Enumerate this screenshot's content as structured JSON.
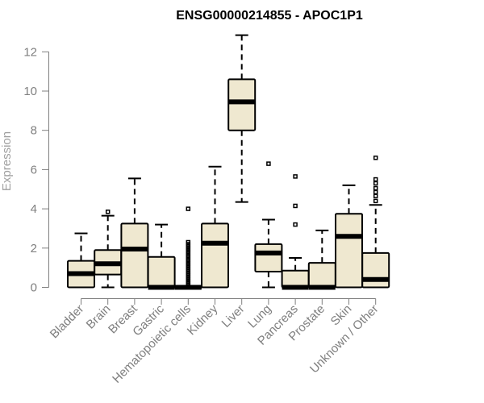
{
  "chart_data": {
    "type": "box",
    "title": "ENSG00000214855 - APOC1P1",
    "xlabel": "",
    "ylabel": "Expression",
    "ylim": [
      0,
      12.8
    ],
    "yticks": [
      0,
      2,
      4,
      6,
      8,
      10,
      12
    ],
    "grid": false,
    "box_fill": "#efe8d0",
    "box_stroke": "#000000",
    "label_color": "#7f7f7f",
    "categories": [
      "Bladder",
      "Brain",
      "Breast",
      "Gastric",
      "Hematopoietic cells",
      "Kidney",
      "Liver",
      "Lung",
      "Pancreas",
      "Prostate",
      "Skin",
      "Unknown / Other"
    ],
    "boxes": [
      {
        "category": "Bladder",
        "whisker_low": 0,
        "q1": 0,
        "median": 0.7,
        "q3": 1.35,
        "whisker_high": 2.75,
        "outliers": []
      },
      {
        "category": "Brain",
        "whisker_low": 0,
        "q1": 0.65,
        "median": 1.2,
        "q3": 1.9,
        "whisker_high": 3.65,
        "outliers": [
          3.85
        ]
      },
      {
        "category": "Breast",
        "whisker_low": 0,
        "q1": 0,
        "median": 1.95,
        "q3": 3.25,
        "whisker_high": 5.55,
        "outliers": []
      },
      {
        "category": "Gastric",
        "whisker_low": 0,
        "q1": 0,
        "median": 0,
        "q3": 1.55,
        "whisker_high": 3.2,
        "outliers": []
      },
      {
        "category": "Hematopoietic cells",
        "whisker_low": 0,
        "q1": 0,
        "median": 0,
        "q3": 0,
        "whisker_high": 0,
        "outliers": [
          0.1,
          0.2,
          0.3,
          0.4,
          0.5,
          0.6,
          0.7,
          0.8,
          0.9,
          1.0,
          1.1,
          1.2,
          1.3,
          1.4,
          1.5,
          1.6,
          1.7,
          1.8,
          1.9,
          2.0,
          2.1,
          2.2,
          2.3,
          4.0
        ]
      },
      {
        "category": "Kidney",
        "whisker_low": 0,
        "q1": 0,
        "median": 2.25,
        "q3": 3.25,
        "whisker_high": 6.15,
        "outliers": []
      },
      {
        "category": "Liver",
        "whisker_low": 4.35,
        "q1": 8.0,
        "median": 9.45,
        "q3": 10.6,
        "whisker_high": 12.85,
        "outliers": []
      },
      {
        "category": "Lung",
        "whisker_low": 0,
        "q1": 0.8,
        "median": 1.75,
        "q3": 2.2,
        "whisker_high": 3.45,
        "outliers": [
          6.3
        ]
      },
      {
        "category": "Pancreas",
        "whisker_low": 0,
        "q1": 0,
        "median": 0,
        "q3": 0.85,
        "whisker_high": 1.5,
        "outliers": [
          3.2,
          4.15,
          5.65
        ]
      },
      {
        "category": "Prostate",
        "whisker_low": 0,
        "q1": 0,
        "median": 0,
        "q3": 1.25,
        "whisker_high": 2.9,
        "outliers": []
      },
      {
        "category": "Skin",
        "whisker_low": 0,
        "q1": 0,
        "median": 2.6,
        "q3": 3.75,
        "whisker_high": 5.2,
        "outliers": []
      },
      {
        "category": "Unknown / Other",
        "whisker_low": 0,
        "q1": 0,
        "median": 0.4,
        "q3": 1.75,
        "whisker_high": 4.2,
        "outliers": [
          4.4,
          4.65,
          4.85,
          5.05,
          5.3,
          5.5,
          6.6
        ]
      }
    ]
  }
}
